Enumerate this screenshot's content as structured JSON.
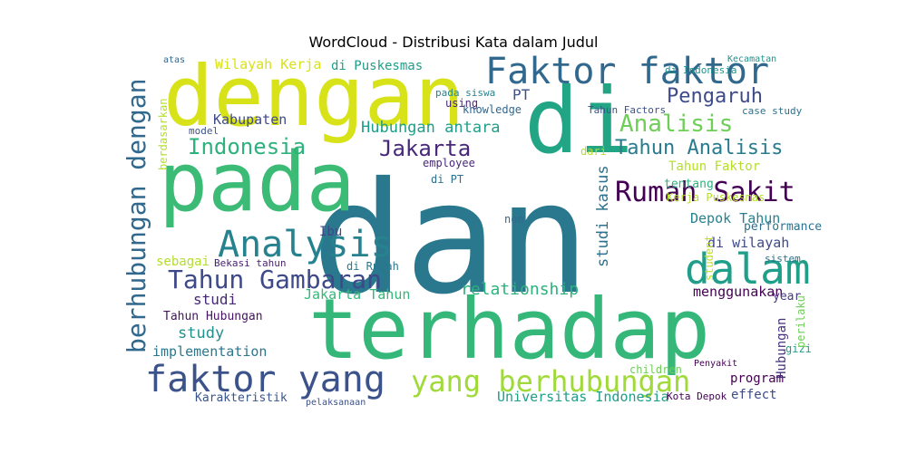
{
  "chart_data": {
    "type": "wordcloud",
    "title": "WordCloud - Distribusi Kata dalam Judul",
    "colormap": "viridis",
    "background": "#ffffff",
    "words": [
      {
        "text": "dan",
        "color": "#2a788e"
      },
      {
        "text": "pada",
        "color": "#3bbb75"
      },
      {
        "text": "terhadap",
        "color": "#35b779"
      },
      {
        "text": "di",
        "color": "#21a585"
      },
      {
        "text": "dengan",
        "color": "#d8e219"
      },
      {
        "text": "faktor yang",
        "color": "#3b528b"
      },
      {
        "text": "Faktor faktor",
        "color": "#31688e"
      },
      {
        "text": "Rumah Sakit",
        "color": "#440154"
      },
      {
        "text": "dalam",
        "color": "#1f9e89"
      },
      {
        "text": "Analysis",
        "color": "#26828e"
      },
      {
        "text": "berhubungan dengan",
        "color": "#31688e"
      },
      {
        "text": "yang berhubungan",
        "color": "#a0da39"
      },
      {
        "text": "Tahun Gambaran",
        "color": "#3e4989"
      },
      {
        "text": "Indonesia",
        "color": "#2db27d"
      },
      {
        "text": "Jakarta",
        "color": "#482878"
      },
      {
        "text": "Analisis",
        "color": "#6ece58"
      },
      {
        "text": "Pengaruh",
        "color": "#3e4a89"
      },
      {
        "text": "Tahun Analisis",
        "color": "#287c8e"
      },
      {
        "text": "relationship",
        "color": "#2db27d"
      },
      {
        "text": "Wilayah Kerja",
        "color": "#d8e219"
      },
      {
        "text": "Hubungan antara",
        "color": "#1f9e89"
      },
      {
        "text": "di Puskesmas",
        "color": "#1f9e89"
      },
      {
        "text": "Kabupaten",
        "color": "#3e4a89"
      },
      {
        "text": "studi kasus",
        "color": "#2c728e"
      },
      {
        "text": "Tahun Faktor",
        "color": "#b5de2b"
      },
      {
        "text": "Depok Tahun",
        "color": "#26828e"
      },
      {
        "text": "Jakarta Tahun",
        "color": "#35b779"
      },
      {
        "text": "menggunakan",
        "color": "#440154"
      },
      {
        "text": "di wilayah",
        "color": "#3e4a89"
      },
      {
        "text": "implementation",
        "color": "#2a788e"
      },
      {
        "text": "study",
        "color": "#21918c"
      },
      {
        "text": "Karakteristik",
        "color": "#39568c"
      },
      {
        "text": "Universitas Indonesia",
        "color": "#1f9e89"
      },
      {
        "text": "program",
        "color": "#440154"
      },
      {
        "text": "effect",
        "color": "#3e4a89"
      },
      {
        "text": "Hubungan",
        "color": "#46327e"
      },
      {
        "text": "studi",
        "color": "#482878"
      },
      {
        "text": "Tahun Hubungan",
        "color": "#471365"
      },
      {
        "text": "sebagai",
        "color": "#b5de2b"
      },
      {
        "text": "Ibu",
        "color": "#414487"
      },
      {
        "text": "di Rumah",
        "color": "#2a788e"
      },
      {
        "text": "knowledge",
        "color": "#31688e"
      },
      {
        "text": "pada siswa",
        "color": "#26828e"
      },
      {
        "text": "PT",
        "color": "#3b528b"
      },
      {
        "text": "Kerja Puskesmas",
        "color": "#b5de2b"
      },
      {
        "text": "performance",
        "color": "#2c728e"
      },
      {
        "text": "year",
        "color": "#443983"
      },
      {
        "text": "gizi",
        "color": "#1f9e89"
      },
      {
        "text": "student",
        "color": "#bddf26"
      },
      {
        "text": "tentang",
        "color": "#2db27d"
      },
      {
        "text": "Kecamatan",
        "color": "#21918c"
      },
      {
        "text": "Tahun Factors",
        "color": "#3b528b"
      },
      {
        "text": "case study",
        "color": "#2c728e"
      },
      {
        "text": "using",
        "color": "#482878"
      },
      {
        "text": "di Indonesia",
        "color": "#21918c"
      },
      {
        "text": "atas",
        "color": "#31688e"
      },
      {
        "text": "employee",
        "color": "#482878"
      },
      {
        "text": "di PT",
        "color": "#2c728e"
      },
      {
        "text": "dari",
        "color": "#b5de2b"
      },
      {
        "text": "model",
        "color": "#3b528b"
      },
      {
        "text": "Bekasi tahun",
        "color": "#481f70"
      },
      {
        "text": "perilaku",
        "color": "#6ece58"
      },
      {
        "text": "non",
        "color": "#31688e"
      },
      {
        "text": "sistem",
        "color": "#2c728e"
      },
      {
        "text": "berdasarkan",
        "color": "#b5de2b"
      },
      {
        "text": "Penyakit",
        "color": "#440154"
      },
      {
        "text": "children",
        "color": "#6ece58"
      },
      {
        "text": "pelaksanaan",
        "color": "#3b528b"
      },
      {
        "text": "Kota Depok",
        "color": "#440154"
      }
    ]
  }
}
